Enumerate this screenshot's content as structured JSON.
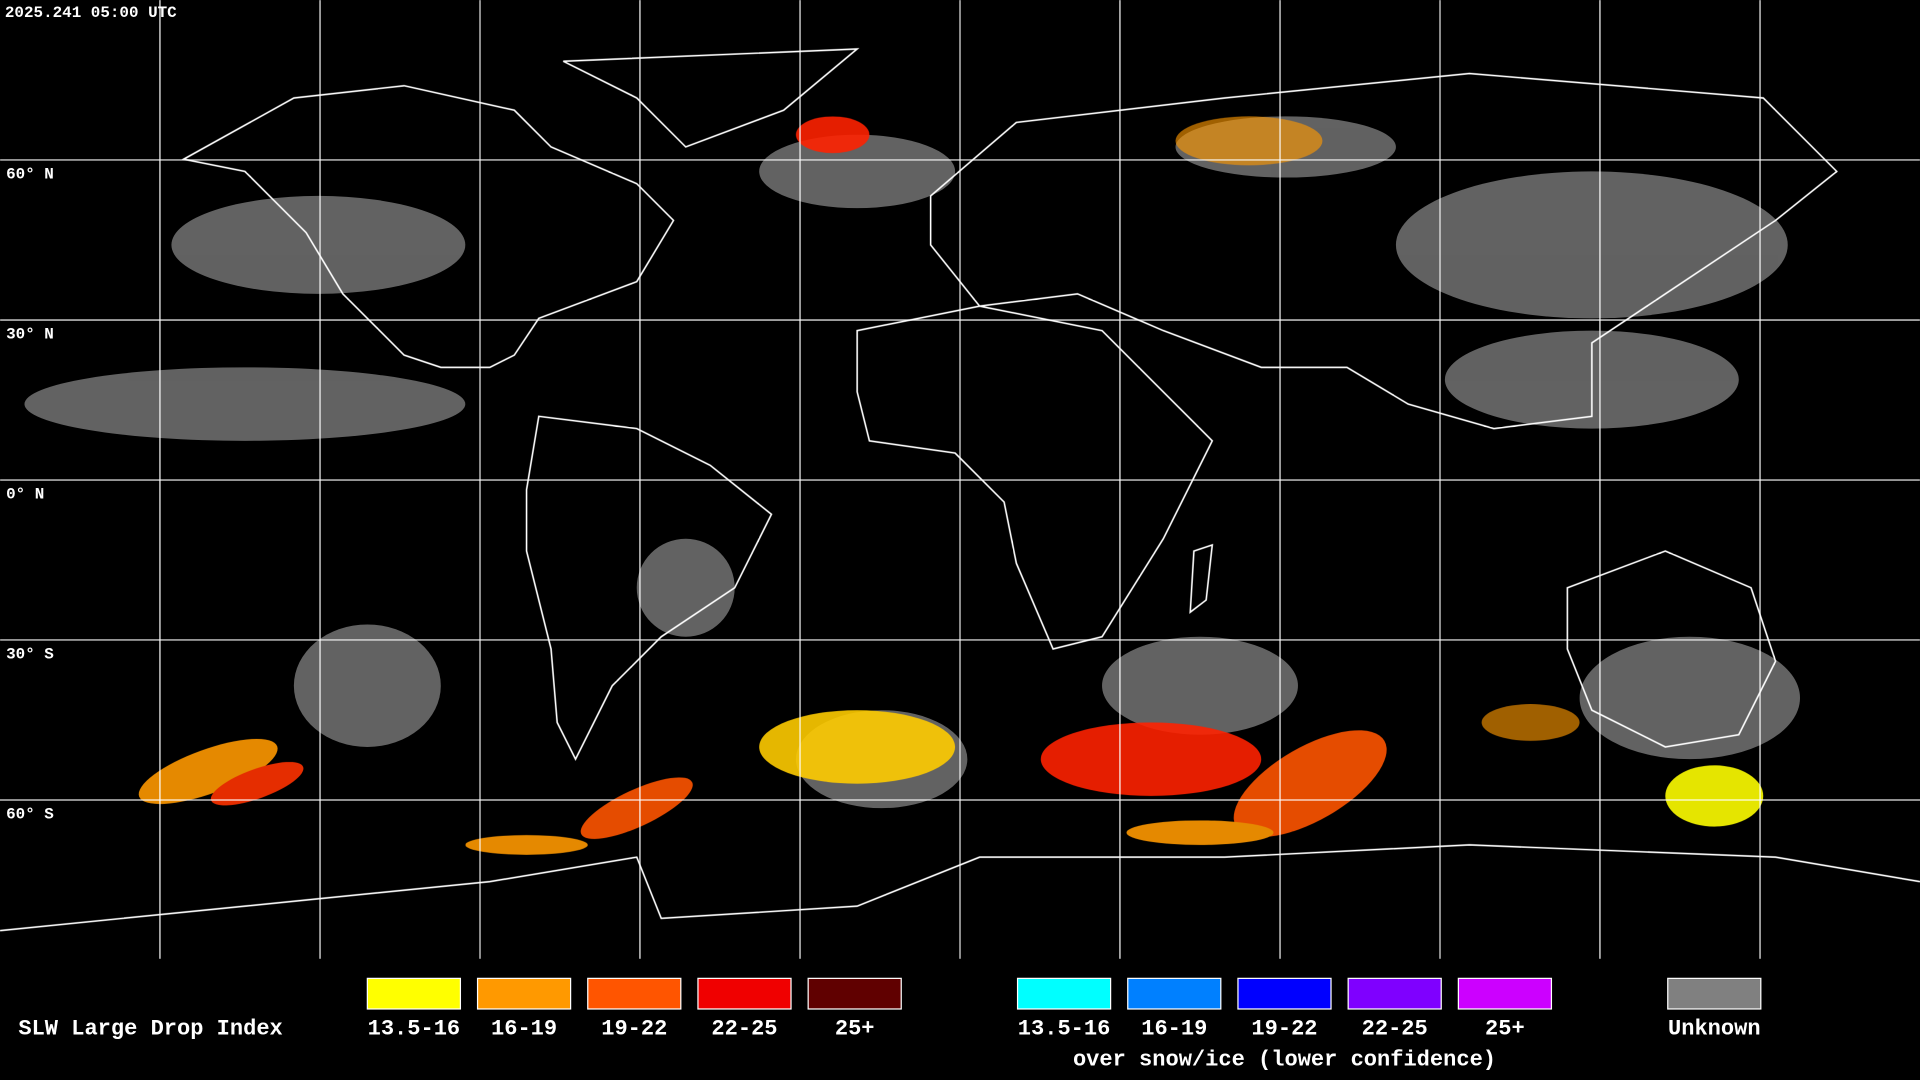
{
  "header": {
    "timestamp": "2025.241 05:00 UTC"
  },
  "map": {
    "latitude_labels": [
      "60° N",
      "30° N",
      "0° N",
      "30° S",
      "60° S"
    ]
  },
  "legend": {
    "title": "SLW Large Drop Index",
    "items": [
      {
        "label": "13.5-16",
        "color": "#ffff00"
      },
      {
        "label": "16-19",
        "color": "#ff9900"
      },
      {
        "label": "19-22",
        "color": "#ff5500"
      },
      {
        "label": "22-25",
        "color": "#f00000"
      },
      {
        "label": "25+",
        "color": "#600000"
      }
    ],
    "snow_ice_items": [
      {
        "label": "13.5-16",
        "color": "#00ffff"
      },
      {
        "label": "16-19",
        "color": "#0080ff"
      },
      {
        "label": "19-22",
        "color": "#0000ff"
      },
      {
        "label": "22-25",
        "color": "#7f00ff"
      },
      {
        "label": "25+",
        "color": "#cc00ff"
      }
    ],
    "snow_ice_note": "over snow/ice (lower confidence)",
    "unknown": {
      "label": "Unknown",
      "color": "#808080"
    }
  }
}
